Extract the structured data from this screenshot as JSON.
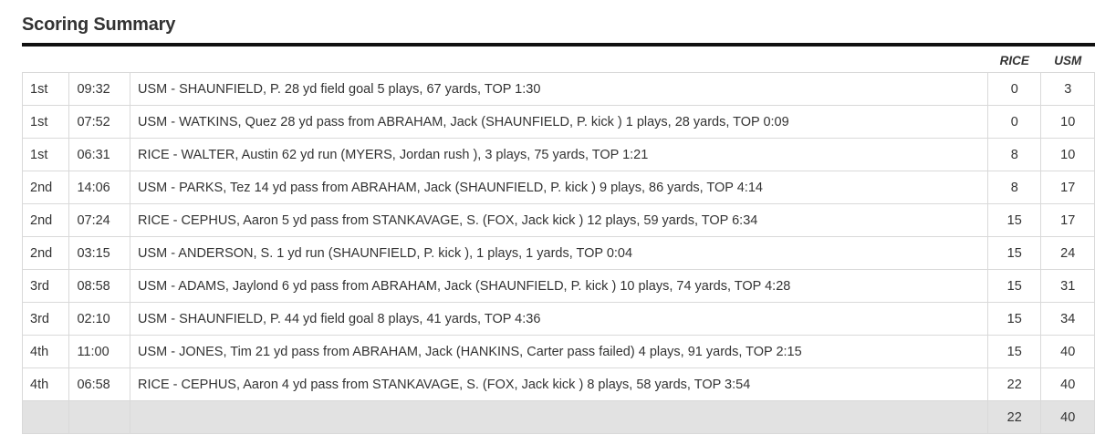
{
  "title": "Scoring Summary",
  "columns": {
    "team1": "RICE",
    "team2": "USM"
  },
  "rows": [
    {
      "quarter": "1st",
      "time": "09:32",
      "description": "USM - SHAUNFIELD, P. 28 yd field goal 5 plays, 67 yards, TOP 1:30",
      "rice": "0",
      "usm": "3"
    },
    {
      "quarter": "1st",
      "time": "07:52",
      "description": "USM - WATKINS, Quez 28 yd pass from ABRAHAM, Jack (SHAUNFIELD, P. kick ) 1 plays, 28 yards, TOP 0:09",
      "rice": "0",
      "usm": "10"
    },
    {
      "quarter": "1st",
      "time": "06:31",
      "description": "RICE - WALTER, Austin 62 yd run (MYERS, Jordan rush ), 3 plays, 75 yards, TOP 1:21",
      "rice": "8",
      "usm": "10"
    },
    {
      "quarter": "2nd",
      "time": "14:06",
      "description": "USM - PARKS, Tez 14 yd pass from ABRAHAM, Jack (SHAUNFIELD, P. kick ) 9 plays, 86 yards, TOP 4:14",
      "rice": "8",
      "usm": "17"
    },
    {
      "quarter": "2nd",
      "time": "07:24",
      "description": "RICE - CEPHUS, Aaron 5 yd pass from STANKAVAGE, S. (FOX, Jack kick ) 12 plays, 59 yards, TOP 6:34",
      "rice": "15",
      "usm": "17"
    },
    {
      "quarter": "2nd",
      "time": "03:15",
      "description": "USM - ANDERSON, S. 1 yd run (SHAUNFIELD, P. kick ), 1 plays, 1 yards, TOP 0:04",
      "rice": "15",
      "usm": "24"
    },
    {
      "quarter": "3rd",
      "time": "08:58",
      "description": "USM - ADAMS, Jaylond 6 yd pass from ABRAHAM, Jack (SHAUNFIELD, P. kick ) 10 plays, 74 yards, TOP 4:28",
      "rice": "15",
      "usm": "31"
    },
    {
      "quarter": "3rd",
      "time": "02:10",
      "description": "USM - SHAUNFIELD, P. 44 yd field goal 8 plays, 41 yards, TOP 4:36",
      "rice": "15",
      "usm": "34"
    },
    {
      "quarter": "4th",
      "time": "11:00",
      "description": "USM - JONES, Tim 21 yd pass from ABRAHAM, Jack (HANKINS, Carter pass failed) 4 plays, 91 yards, TOP 2:15",
      "rice": "15",
      "usm": "40"
    },
    {
      "quarter": "4th",
      "time": "06:58",
      "description": "RICE - CEPHUS, Aaron 4 yd pass from STANKAVAGE, S. (FOX, Jack kick ) 8 plays, 58 yards, TOP 3:54",
      "rice": "22",
      "usm": "40"
    }
  ],
  "totals": {
    "rice": "22",
    "usm": "40"
  }
}
